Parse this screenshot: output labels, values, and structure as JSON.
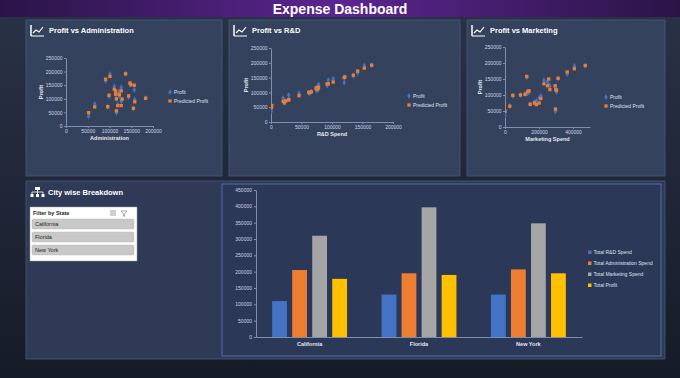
{
  "header": {
    "title": "Expense Dashboard"
  },
  "section": {
    "title": "City wise Breakdown"
  },
  "filter": {
    "title": "Filter by State",
    "items": [
      "California",
      "Florida",
      "New York"
    ]
  },
  "chart_data": [
    {
      "type": "scatter",
      "title": "Profit vs Administration",
      "x_label": "Administration",
      "y_label": "Profit",
      "x": [
        137000,
        101000,
        91000,
        147000,
        149000,
        111000,
        127000,
        157000,
        122000,
        114000,
        114000,
        123000,
        99000,
        144000,
        183000,
        116000,
        129000,
        158000,
        127000,
        66000,
        119000,
        96000,
        155000,
        116000,
        52000
      ],
      "series": [
        {
          "name": "Profit",
          "color": "#4472c4",
          "marker": "diamond",
          "values": [
            192000,
            191000,
            166000,
            156000,
            152000,
            146000,
            142000,
            133000,
            127000,
            124000,
            118000,
            110000,
            109000,
            106000,
            103000,
            100000,
            97000,
            97000,
            91000,
            81000,
            78000,
            71000,
            65000,
            49000,
            36000
          ]
        },
        {
          "name": "Predicted Profit",
          "color": "#ed7d31",
          "marker": "square",
          "values": [
            192000,
            182000,
            172000,
            158000,
            152000,
            135000,
            129000,
            150000,
            117000,
            129000,
            117000,
            115000,
            113000,
            111000,
            102000,
            100000,
            99000,
            89000,
            75000,
            70000,
            75000,
            71000,
            65000,
            56000,
            49000
          ]
        }
      ],
      "xlim": [
        0,
        200000
      ],
      "xticks": [
        0,
        50000,
        100000,
        150000,
        200000
      ],
      "ylim": [
        0,
        250000
      ],
      "yticks": [
        0,
        50000,
        100000,
        150000,
        200000,
        250000
      ],
      "grid": false,
      "legend": "right"
    },
    {
      "type": "scatter",
      "title": "Profit vs R&D",
      "x_label": "R&D Spend",
      "y_label": "Profit",
      "x": [
        165000,
        153000,
        142000,
        135000,
        121000,
        102000,
        94000,
        120000,
        78000,
        92000,
        76000,
        74000,
        77000,
        75000,
        66000,
        62000,
        63000,
        46000,
        29000,
        20000,
        29000,
        24000,
        22000,
        1300,
        500
      ],
      "series": [
        {
          "name": "Profit",
          "color": "#4472c4",
          "marker": "diamond",
          "values": [
            192000,
            191000,
            166000,
            156000,
            152000,
            146000,
            142000,
            133000,
            127000,
            124000,
            118000,
            110000,
            109000,
            106000,
            103000,
            100000,
            97000,
            97000,
            91000,
            81000,
            78000,
            71000,
            65000,
            49000,
            36000
          ]
        },
        {
          "name": "Predicted Profit",
          "color": "#ed7d31",
          "marker": "square",
          "values": [
            192000,
            182000,
            172000,
            158000,
            152000,
            135000,
            129000,
            150000,
            117000,
            129000,
            117000,
            115000,
            113000,
            111000,
            102000,
            100000,
            99000,
            89000,
            75000,
            70000,
            75000,
            71000,
            65000,
            56000,
            49000
          ]
        }
      ],
      "xlim": [
        0,
        200000
      ],
      "xticks": [
        0,
        50000,
        100000,
        150000,
        200000
      ],
      "ylim": [
        0,
        250000
      ],
      "yticks": [
        0,
        50000,
        100000,
        150000,
        200000,
        250000
      ],
      "grid": false,
      "legend": "right"
    },
    {
      "type": "scatter",
      "title": "Profit vs Marketing",
      "x_label": "Marketing Spend",
      "y_label": "Profit",
      "x": [
        472000,
        408000,
        366000,
        128000,
        312000,
        229000,
        250000,
        257000,
        264000,
        295000,
        299000,
        303000,
        141000,
        134000,
        118000,
        91000,
        46000,
        211000,
        201000,
        185000,
        173000,
        148000,
        28000,
        297000,
        0
      ],
      "series": [
        {
          "name": "Profit",
          "color": "#4472c4",
          "marker": "diamond",
          "values": [
            192000,
            191000,
            166000,
            156000,
            152000,
            146000,
            142000,
            133000,
            127000,
            124000,
            118000,
            110000,
            109000,
            106000,
            103000,
            100000,
            97000,
            97000,
            91000,
            81000,
            78000,
            71000,
            65000,
            49000,
            36000
          ]
        },
        {
          "name": "Predicted Profit",
          "color": "#ed7d31",
          "marker": "square",
          "values": [
            192000,
            182000,
            172000,
            158000,
            152000,
            135000,
            129000,
            150000,
            117000,
            129000,
            117000,
            115000,
            113000,
            111000,
            102000,
            100000,
            99000,
            89000,
            75000,
            70000,
            75000,
            71000,
            65000,
            56000,
            49000
          ]
        }
      ],
      "xlim": [
        0,
        500000
      ],
      "xticks": [
        0,
        200000,
        400000
      ],
      "ylim": [
        0,
        250000
      ],
      "yticks": [
        0,
        50000,
        100000,
        150000,
        200000,
        250000
      ],
      "grid": false,
      "legend": "right"
    },
    {
      "type": "bar",
      "categories": [
        "California",
        "Florida",
        "New York"
      ],
      "series": [
        {
          "name": "Total R&D Spend",
          "color": "#4472c4",
          "values": [
            110000,
            130000,
            130000
          ]
        },
        {
          "name": "Total Administration Spend",
          "color": "#ed7d31",
          "values": [
            205000,
            195000,
            207000
          ]
        },
        {
          "name": "Total Marketing Spend",
          "color": "#a5a5a5",
          "values": [
            310000,
            397000,
            348000
          ]
        },
        {
          "name": "Total Profit",
          "color": "#ffc000",
          "values": [
            178000,
            190000,
            195000
          ]
        }
      ],
      "ylim": [
        0,
        450000
      ],
      "yticks": [
        0,
        50000,
        100000,
        150000,
        200000,
        250000,
        300000,
        350000,
        400000,
        450000
      ],
      "grid": false,
      "legend": "right"
    }
  ]
}
